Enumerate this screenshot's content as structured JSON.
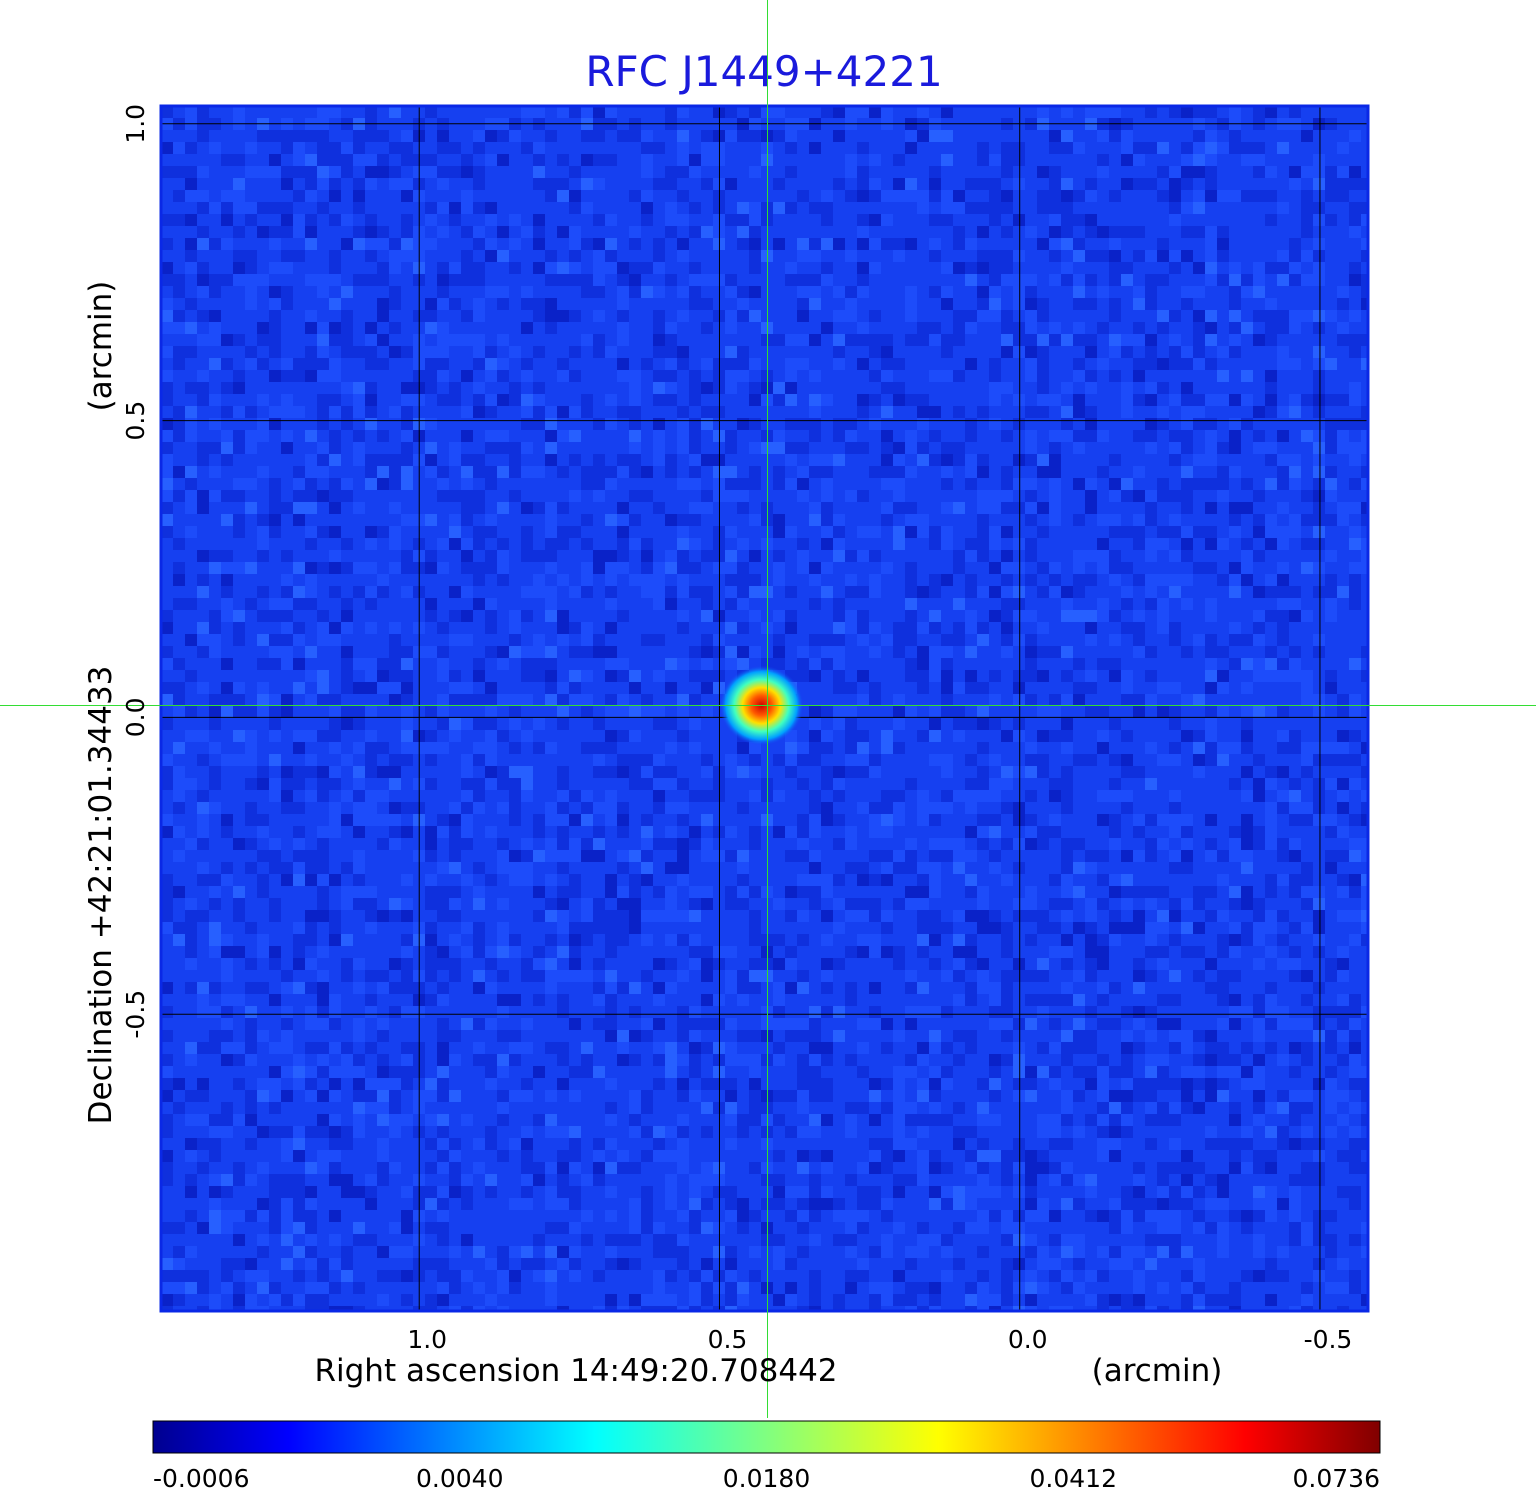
{
  "chart_data": {
    "type": "heatmap",
    "title": "RFC J1449+4221",
    "xlabel": "Right ascension  14:49:20.708442",
    "xunit": "(arcmin)",
    "ylabel": "Declination  +42:21:01.34433",
    "yunit": "(arcmin)",
    "x_ticks": [
      "1.0",
      "0.5",
      "0.0",
      "-0.5"
    ],
    "y_ticks": [
      "1.0",
      "0.5",
      "0.0",
      "-0.5"
    ],
    "xlim": [
      1.43,
      -0.58
    ],
    "ylim": [
      -1.0,
      1.03
    ],
    "grid": true,
    "colormap": "jet",
    "colorbar_ticks": [
      "-0.0006",
      "0.0040",
      "0.0180",
      "0.0412",
      "0.0736"
    ],
    "peak": {
      "x": 0.43,
      "y": 0.02
    },
    "crosshair": {
      "x": 0.42,
      "y": 0.02,
      "color": "#33dd33"
    },
    "background_color": "#1640f0",
    "grid_color": "#000000",
    "frame_color": "#0a28e6",
    "title_color": "#1a1adc"
  }
}
